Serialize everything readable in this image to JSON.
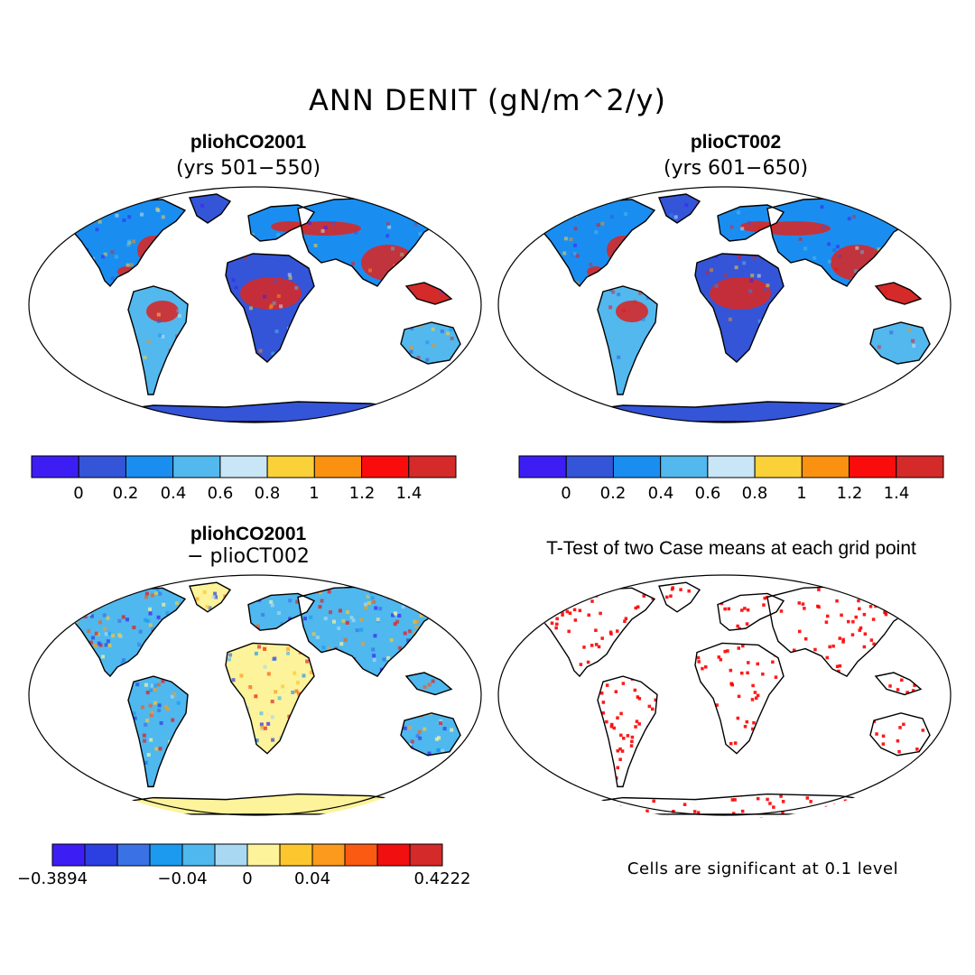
{
  "title": "ANN DENIT (gN/m^2/y)",
  "panels": [
    {
      "id": "tl",
      "name": "pliohCO2001",
      "subtitle": "(yrs 501−550)"
    },
    {
      "id": "tr",
      "name": "plioCT002",
      "subtitle": "(yrs 601−650)"
    },
    {
      "id": "bl",
      "name": "pliohCO2001",
      "subtitle": "− plioCT002"
    },
    {
      "id": "br",
      "name": "T-Test of two Case means at each grid point",
      "subtitle": ""
    }
  ],
  "colorbar_abs": {
    "colors": [
      "#3c1ef5",
      "#3455d8",
      "#1a8ef0",
      "#52b8ee",
      "#c8e6f5",
      "#fbd13a",
      "#fa9110",
      "#fb0c0c",
      "#d42a2a"
    ],
    "labels": [
      "0",
      "0.2",
      "0.4",
      "0.6",
      "0.8",
      "1",
      "1.2",
      "1.4"
    ]
  },
  "colorbar_diff": {
    "colors": [
      "#3c1ef5",
      "#2c3fe0",
      "#3a72e6",
      "#1b9af0",
      "#4fb8ee",
      "#a9d9f2",
      "#fdf39a",
      "#fcc72e",
      "#fb9a1c",
      "#fb5a12",
      "#f20f0f",
      "#d42a2a"
    ],
    "labels": [
      "−0.3894",
      "−0.04",
      "0",
      "0.04",
      "0.4222"
    ]
  },
  "note": "Cells are significant at 0.1 level",
  "ocean_color": "#ffffff",
  "antarctica_abs_color": "#3455d8",
  "antarctica_diff_color": "#fdf39a",
  "significant_color": "#ff0000"
}
